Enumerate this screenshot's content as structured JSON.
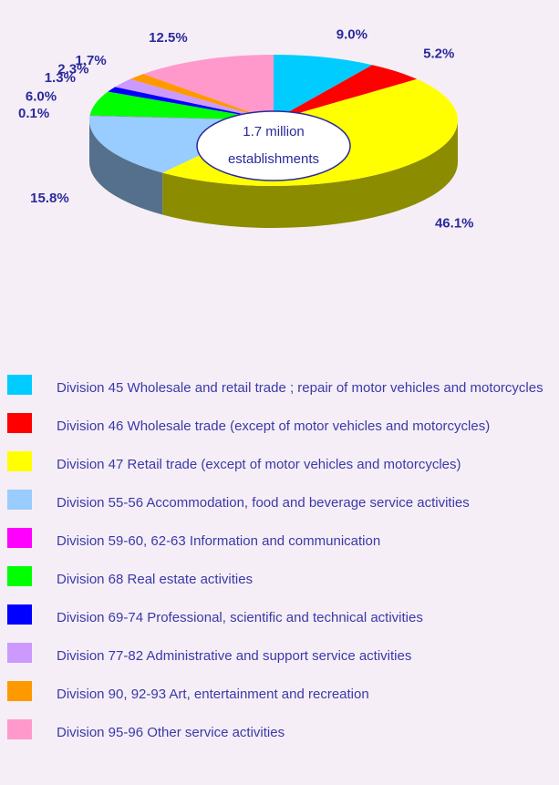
{
  "chart_data": {
    "type": "pie",
    "categories": [
      "Division 45 Wholesale and retail trade ; repair of motor vehicles and motorcycles",
      "Division 46 Wholesale trade (except of motor vehicles and motorcycles)",
      "Division 47 Retail trade (except of motor vehicles and motorcycles)",
      "Division 55-56 Accommodation, food and beverage service activities",
      "Division 59-60, 62-63 Information and communication",
      "Division 68 Real estate activities",
      "Division 69-74 Professional, scientific and technical activities",
      "Division 77-82 Administrative and support service activities",
      "Division 90, 92-93 Art, entertainment and recreation",
      "Division 95-96 Other service activities"
    ],
    "values": [
      9.0,
      5.2,
      46.1,
      15.8,
      0.1,
      6.0,
      1.3,
      2.3,
      1.7,
      12.5
    ],
    "value_labels": [
      "9.0%",
      "5.2%",
      "46.1%",
      "15.8%",
      "0.1%",
      "6.0%",
      "1.3%",
      "2.3%",
      "1.7%",
      "12.5%"
    ],
    "colors": [
      "#00ccff",
      "#ff0000",
      "#ffff00",
      "#99ccff",
      "#ff00ff",
      "#00ff00",
      "#0000ff",
      "#cc99ff",
      "#ff9900",
      "#ff99cc"
    ],
    "annotations": [
      "1.7 million",
      "establishments"
    ]
  }
}
